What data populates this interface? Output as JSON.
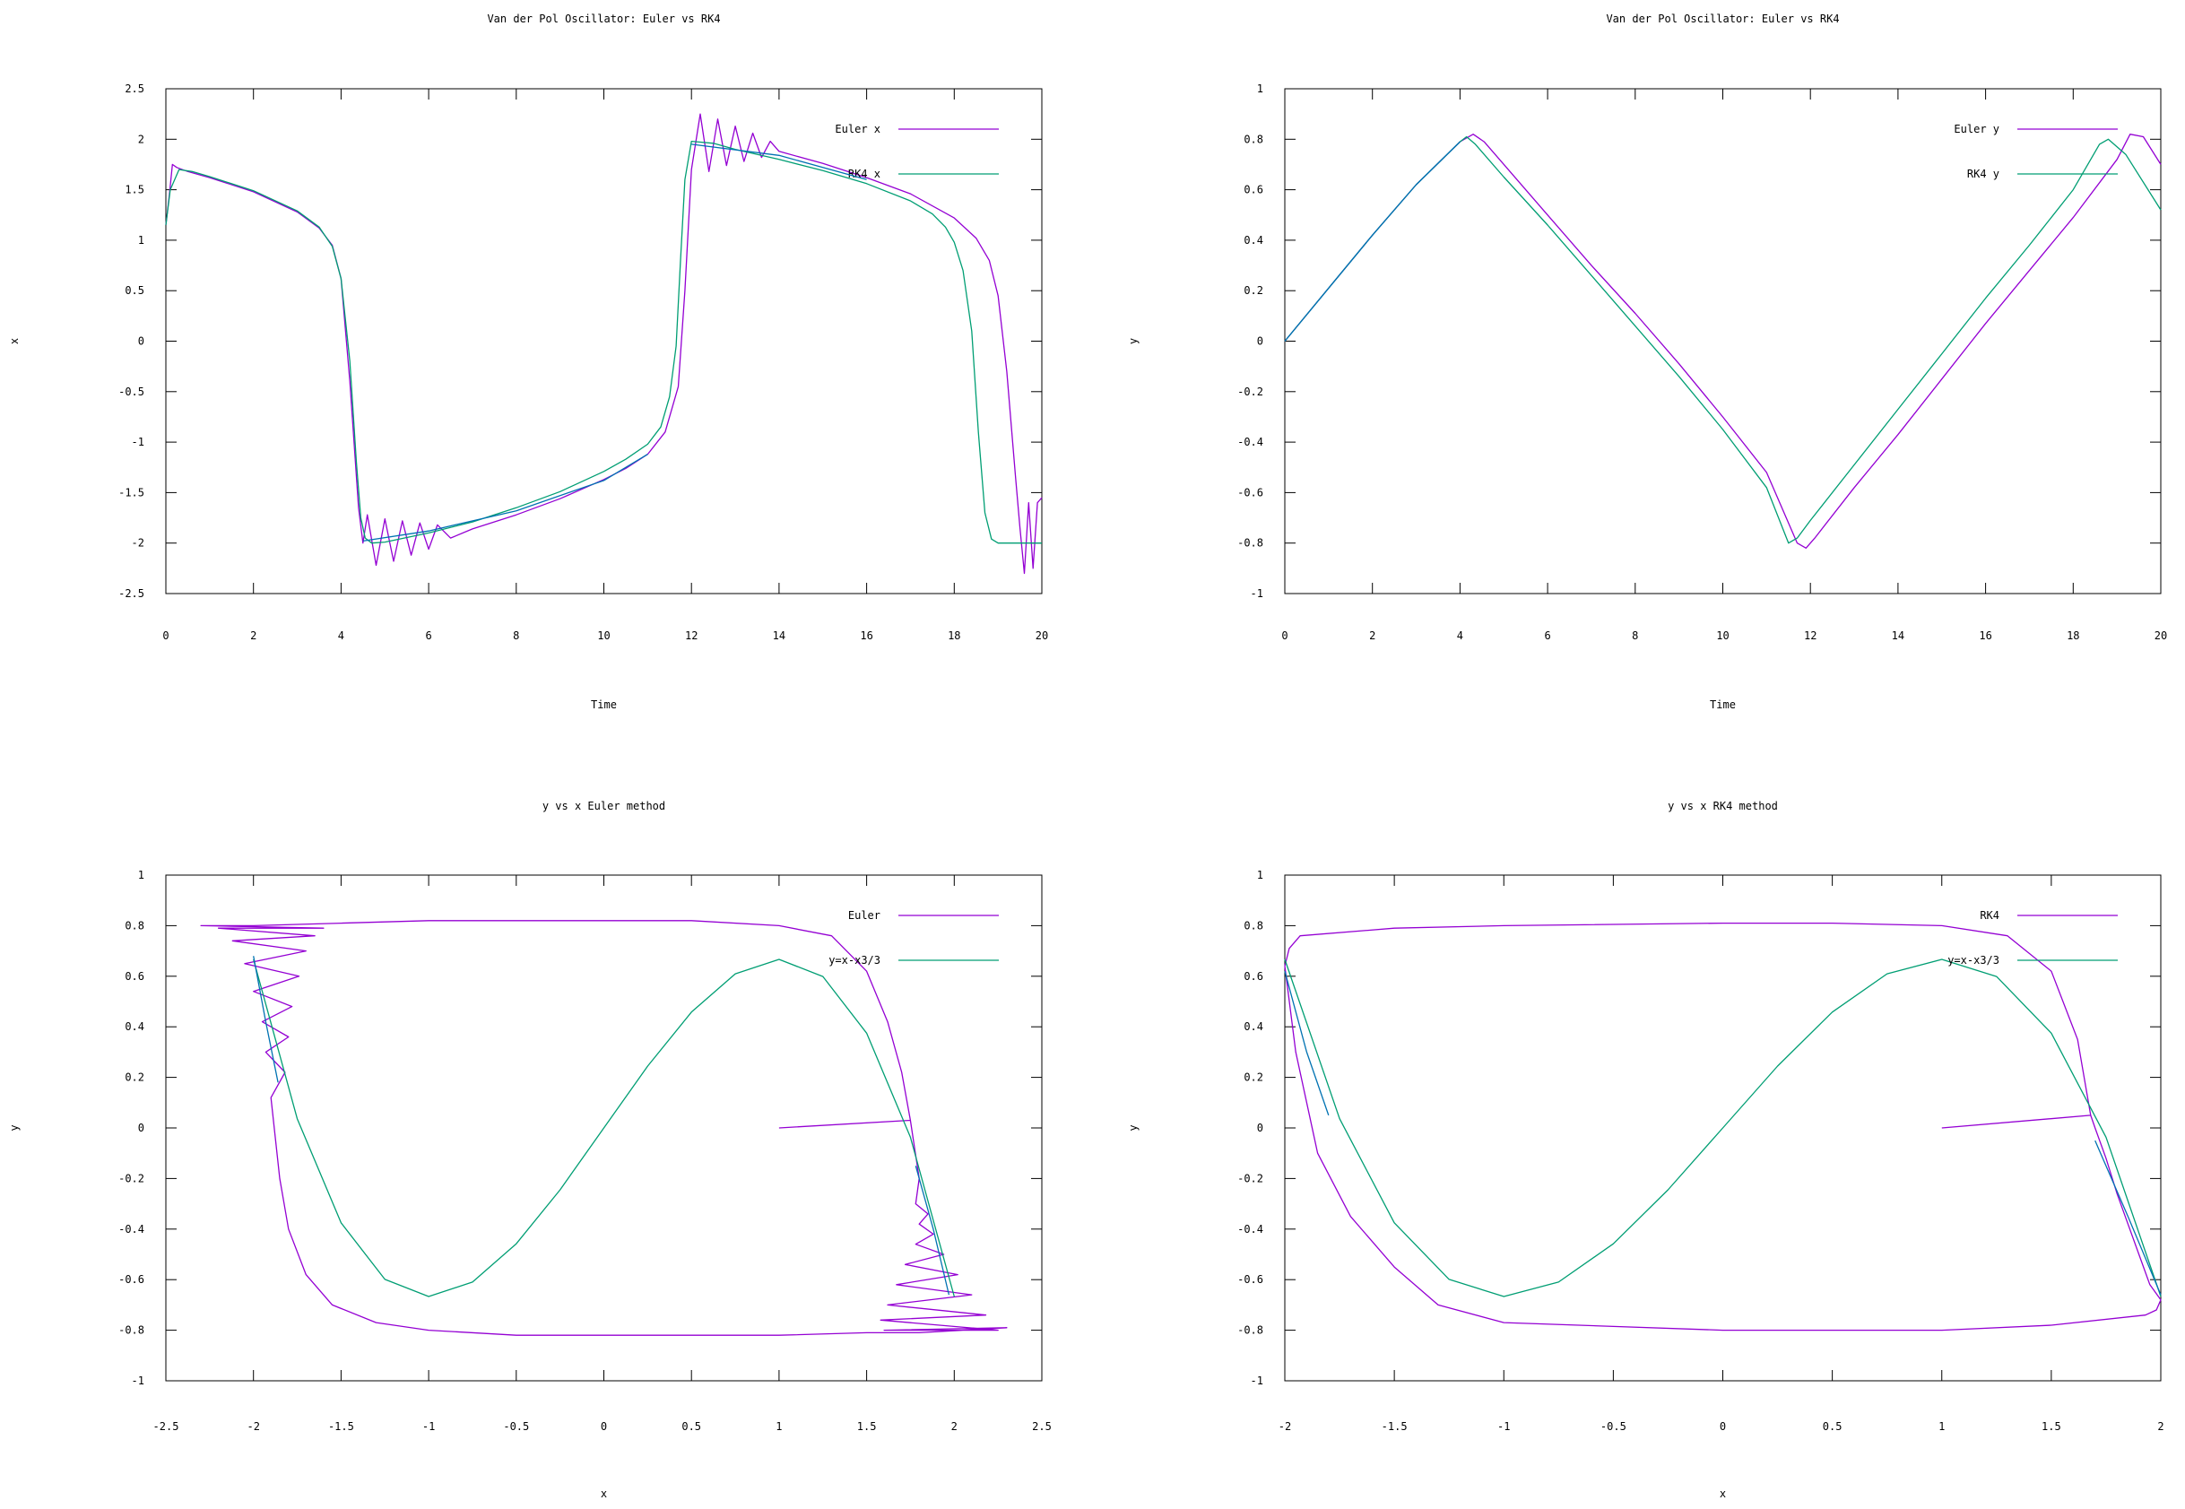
{
  "chart_data": [
    {
      "type": "line",
      "title": "Van der Pol Oscillator: Euler vs RK4",
      "xlabel": "Time",
      "ylabel": "x",
      "xlim": [
        0,
        20
      ],
      "ylim": [
        -2.5,
        2.5
      ],
      "xticks": [
        "0",
        "2",
        "4",
        "6",
        "8",
        "10",
        "12",
        "14",
        "16",
        "18",
        "20"
      ],
      "yticks": [
        "-2.5",
        "-2",
        "-1.5",
        "-1",
        "-0.5",
        "0",
        "0.5",
        "1",
        "1.5",
        "2",
        "2.5"
      ],
      "legend_position": "top-right",
      "series": [
        {
          "name": "Euler x",
          "color": "#9400d3",
          "x": [
            0,
            0.08,
            0.15,
            0.25,
            0.5,
            1,
            2,
            3,
            3.5,
            3.8,
            4.0,
            4.2,
            4.4,
            4.5,
            4.6,
            4.8,
            5.0,
            5.2,
            5.4,
            5.6,
            5.8,
            6.0,
            6.2,
            6.5,
            7,
            8,
            9,
            10,
            10.5,
            11,
            11.4,
            11.7,
            11.85,
            12.0,
            12.2,
            12.4,
            12.6,
            12.8,
            13.0,
            13.2,
            13.4,
            13.6,
            13.8,
            14.0,
            15,
            16,
            17,
            18,
            18.5,
            18.8,
            19.0,
            19.2,
            19.4,
            19.5,
            19.6,
            19.7,
            19.8,
            19.9,
            20
          ],
          "y": [
            1.15,
            1.45,
            1.75,
            1.72,
            1.68,
            1.62,
            1.48,
            1.28,
            1.12,
            0.95,
            0.62,
            -0.4,
            -1.65,
            -2.0,
            -1.72,
            -2.22,
            -1.76,
            -2.18,
            -1.78,
            -2.12,
            -1.8,
            -2.06,
            -1.82,
            -1.95,
            -1.86,
            -1.72,
            -1.56,
            -1.37,
            -1.26,
            -1.12,
            -0.9,
            -0.45,
            0.5,
            1.7,
            2.25,
            1.68,
            2.2,
            1.74,
            2.13,
            1.78,
            2.06,
            1.82,
            1.98,
            1.88,
            1.76,
            1.62,
            1.46,
            1.22,
            1.02,
            0.8,
            0.45,
            -0.3,
            -1.35,
            -1.85,
            -2.3,
            -1.6,
            -2.25,
            -1.6,
            -1.55
          ]
        },
        {
          "name": "RK4 x",
          "color": "#009e73",
          "x": [
            0,
            0.1,
            0.3,
            0.6,
            1,
            2,
            3,
            3.5,
            3.8,
            4.0,
            4.2,
            4.35,
            4.45,
            4.55,
            4.7,
            5,
            6,
            7,
            8,
            9,
            10,
            10.5,
            11,
            11.3,
            11.5,
            11.65,
            11.75,
            11.85,
            12.0,
            12.5,
            13,
            14,
            15,
            16,
            17,
            17.5,
            17.8,
            18.0,
            18.2,
            18.4,
            18.55,
            18.7,
            18.85,
            19.0,
            19.2,
            19.5,
            20
          ],
          "y": [
            1.15,
            1.5,
            1.7,
            1.68,
            1.63,
            1.49,
            1.29,
            1.13,
            0.94,
            0.62,
            -0.2,
            -1.2,
            -1.75,
            -1.95,
            -2.0,
            -1.99,
            -1.9,
            -1.79,
            -1.65,
            -1.49,
            -1.29,
            -1.17,
            -1.02,
            -0.85,
            -0.55,
            -0.05,
            0.8,
            1.6,
            1.98,
            1.96,
            1.9,
            1.8,
            1.69,
            1.56,
            1.39,
            1.26,
            1.13,
            0.98,
            0.7,
            0.1,
            -0.9,
            -1.7,
            -1.96,
            -2.0,
            -2.0,
            -2.0,
            -2.0
          ]
        },
        {
          "name": "",
          "color": "#0072b2",
          "x": [
            4.5,
            6,
            8,
            10,
            11
          ],
          "y": [
            -1.98,
            -1.88,
            -1.68,
            -1.38,
            -1.12
          ]
        },
        {
          "name": "",
          "color": "#0072b2",
          "x": [
            12,
            14,
            16
          ],
          "y": [
            1.95,
            1.84,
            1.6
          ]
        }
      ]
    },
    {
      "type": "line",
      "title": "Van der Pol Oscillator: Euler vs RK4",
      "xlabel": "Time",
      "ylabel": "y",
      "xlim": [
        0,
        20
      ],
      "ylim": [
        -1,
        1
      ],
      "xticks": [
        "0",
        "2",
        "4",
        "6",
        "8",
        "10",
        "12",
        "14",
        "16",
        "18",
        "20"
      ],
      "yticks": [
        "-1",
        "-0.8",
        "-0.6",
        "-0.4",
        "-0.2",
        "0",
        "0.2",
        "0.4",
        "0.6",
        "0.8",
        "1"
      ],
      "legend_position": "top-right",
      "series": [
        {
          "name": "Euler y",
          "color": "#9400d3",
          "x": [
            0,
            1,
            2,
            3,
            4,
            4.3,
            4.55,
            5,
            6,
            7,
            8,
            9,
            10,
            11,
            11.7,
            11.9,
            12.1,
            13,
            14,
            15,
            16,
            17,
            18,
            19,
            19.3,
            19.6,
            20
          ],
          "y": [
            0,
            0.21,
            0.42,
            0.62,
            0.79,
            0.82,
            0.79,
            0.7,
            0.5,
            0.3,
            0.11,
            -0.09,
            -0.3,
            -0.52,
            -0.8,
            -0.82,
            -0.78,
            -0.58,
            -0.37,
            -0.15,
            0.07,
            0.28,
            0.49,
            0.72,
            0.82,
            0.81,
            0.7
          ]
        },
        {
          "name": "RK4 y",
          "color": "#009e73",
          "x": [
            0,
            1,
            2,
            3,
            4,
            4.15,
            4.35,
            5,
            6,
            7,
            8,
            9,
            10,
            11,
            11.5,
            11.7,
            12,
            13,
            14,
            15,
            16,
            17,
            18,
            18.6,
            18.8,
            19.2,
            20
          ],
          "y": [
            0,
            0.21,
            0.42,
            0.62,
            0.79,
            0.81,
            0.78,
            0.65,
            0.46,
            0.26,
            0.06,
            -0.14,
            -0.35,
            -0.58,
            -0.8,
            -0.78,
            -0.71,
            -0.49,
            -0.27,
            -0.05,
            0.17,
            0.38,
            0.6,
            0.78,
            0.8,
            0.74,
            0.52
          ]
        },
        {
          "name": "",
          "color": "#0072b2",
          "x": [
            0,
            1,
            2,
            3,
            4
          ],
          "y": [
            0,
            0.21,
            0.42,
            0.62,
            0.79
          ]
        }
      ]
    },
    {
      "type": "line",
      "title": "y vs x Euler method",
      "xlabel": "x",
      "ylabel": "y",
      "xlim": [
        -2.5,
        2.5
      ],
      "ylim": [
        -1,
        1
      ],
      "xticks": [
        "-2.5",
        "-2",
        "-1.5",
        "-1",
        "-0.5",
        "0",
        "0.5",
        "1",
        "1.5",
        "2",
        "2.5"
      ],
      "yticks": [
        "-1",
        "-0.8",
        "-0.6",
        "-0.4",
        "-0.2",
        "0",
        "0.2",
        "0.4",
        "0.6",
        "0.8",
        "1"
      ],
      "legend_position": "top-right",
      "series": [
        {
          "name": "Euler",
          "color": "#9400d3",
          "x": [
            1.0,
            1.75,
            1.8,
            1.78,
            1.85,
            1.8,
            1.88,
            1.78,
            1.94,
            1.72,
            2.02,
            1.67,
            2.1,
            1.62,
            2.18,
            1.58,
            2.25,
            1.6,
            2.3,
            1.8,
            1.5,
            1.0,
            0.0,
            -0.5,
            -1.0,
            -1.3,
            -1.55,
            -1.7,
            -1.8,
            -1.85,
            -1.9,
            -1.82,
            -1.93,
            -1.8,
            -1.95,
            -1.78,
            -2.0,
            -1.74,
            -2.05,
            -1.7,
            -2.12,
            -1.65,
            -2.2,
            -1.6,
            -2.3,
            -2.0,
            -1.5,
            -1.0,
            0.0,
            0.5,
            1.0,
            1.3,
            1.5,
            1.62,
            1.7,
            1.75
          ],
          "y": [
            0.0,
            0.03,
            -0.2,
            -0.3,
            -0.34,
            -0.38,
            -0.42,
            -0.46,
            -0.5,
            -0.54,
            -0.58,
            -0.62,
            -0.66,
            -0.7,
            -0.74,
            -0.76,
            -0.8,
            -0.8,
            -0.79,
            -0.81,
            -0.81,
            -0.82,
            -0.82,
            -0.82,
            -0.8,
            -0.77,
            -0.7,
            -0.58,
            -0.4,
            -0.2,
            0.12,
            0.22,
            0.3,
            0.36,
            0.42,
            0.48,
            0.54,
            0.6,
            0.65,
            0.7,
            0.74,
            0.76,
            0.79,
            0.79,
            0.8,
            0.8,
            0.81,
            0.82,
            0.82,
            0.82,
            0.8,
            0.76,
            0.62,
            0.42,
            0.22,
            0.03
          ]
        },
        {
          "name": "y=x-x3/3",
          "color": "#009e73",
          "x": [
            -2,
            -1.75,
            -1.5,
            -1.25,
            -1,
            -0.75,
            -0.5,
            -0.25,
            0,
            0.25,
            0.5,
            0.75,
            1,
            1.25,
            1.5,
            1.75,
            2
          ],
          "y": [
            0.6667,
            0.0365,
            -0.375,
            -0.599,
            -0.6667,
            -0.6094,
            -0.4583,
            -0.2448,
            0,
            0.2448,
            0.4583,
            0.6094,
            0.6667,
            0.599,
            0.375,
            -0.0365,
            -0.6667
          ]
        },
        {
          "name": "",
          "color": "#0072b2",
          "x": [
            -2.0,
            -1.93,
            -1.86
          ],
          "y": [
            0.68,
            0.42,
            0.18
          ]
        },
        {
          "name": "",
          "color": "#0072b2",
          "x": [
            1.78,
            1.88,
            1.97
          ],
          "y": [
            -0.15,
            -0.4,
            -0.66
          ]
        }
      ]
    },
    {
      "type": "line",
      "title": "y vs x RK4 method",
      "xlabel": "x",
      "ylabel": "y",
      "xlim": [
        -2,
        2
      ],
      "ylim": [
        -1,
        1
      ],
      "xticks": [
        "-2",
        "-1.5",
        "-1",
        "-0.5",
        "0",
        "0.5",
        "1",
        "1.5",
        "2"
      ],
      "yticks": [
        "-1",
        "-0.8",
        "-0.6",
        "-0.4",
        "-0.2",
        "0",
        "0.2",
        "0.4",
        "0.6",
        "0.8",
        "1"
      ],
      "legend_position": "top-right",
      "series": [
        {
          "name": "RK4",
          "color": "#9400d3",
          "x": [
            1.0,
            1.68,
            1.7,
            1.75,
            1.8,
            1.85,
            1.9,
            1.95,
            2.0,
            1.98,
            1.93,
            1.5,
            1.0,
            0.0,
            -1.0,
            -1.3,
            -1.5,
            -1.7,
            -1.85,
            -1.95,
            -2.0,
            -1.98,
            -1.93,
            -1.5,
            -1.0,
            0.0,
            0.5,
            1.0,
            1.3,
            1.5,
            1.62,
            1.68
          ],
          "y": [
            0.0,
            0.05,
            0.0,
            -0.12,
            -0.26,
            -0.38,
            -0.5,
            -0.62,
            -0.68,
            -0.72,
            -0.74,
            -0.78,
            -0.8,
            -0.8,
            -0.77,
            -0.7,
            -0.55,
            -0.35,
            -0.1,
            0.3,
            0.64,
            0.71,
            0.76,
            0.79,
            0.8,
            0.81,
            0.81,
            0.8,
            0.76,
            0.62,
            0.35,
            0.05
          ]
        },
        {
          "name": "y=x-x3/3",
          "color": "#009e73",
          "x": [
            -2,
            -1.75,
            -1.5,
            -1.25,
            -1,
            -0.75,
            -0.5,
            -0.25,
            0,
            0.25,
            0.5,
            0.75,
            1,
            1.25,
            1.5,
            1.75,
            2
          ],
          "y": [
            0.6667,
            0.0365,
            -0.375,
            -0.599,
            -0.6667,
            -0.6094,
            -0.4583,
            -0.2448,
            0,
            0.2448,
            0.4583,
            0.6094,
            0.6667,
            0.599,
            0.375,
            -0.0365,
            -0.6667
          ]
        },
        {
          "name": "",
          "color": "#0072b2",
          "x": [
            -2.0,
            -1.9,
            -1.8
          ],
          "y": [
            0.62,
            0.3,
            0.05
          ]
        },
        {
          "name": "",
          "color": "#0072b2",
          "x": [
            1.7,
            1.85,
            2.0
          ],
          "y": [
            -0.05,
            -0.35,
            -0.66
          ]
        }
      ]
    }
  ]
}
